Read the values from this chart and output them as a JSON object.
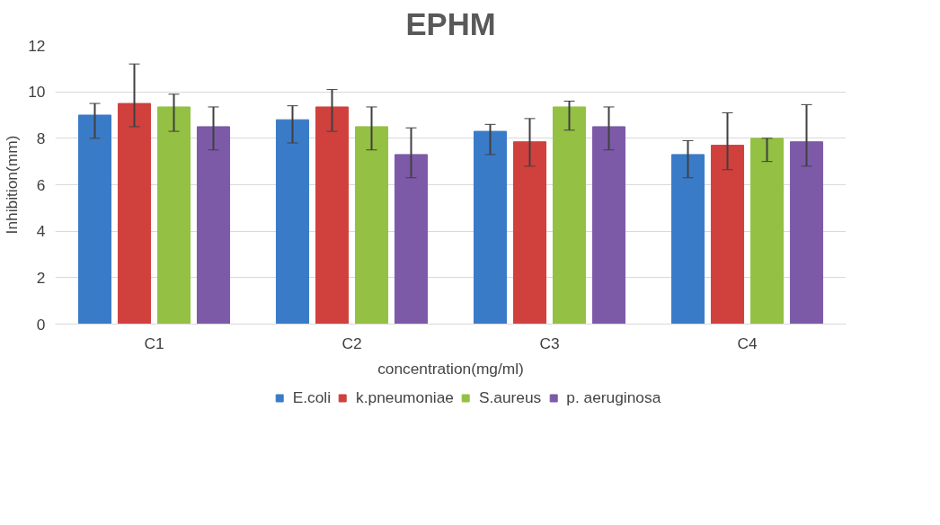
{
  "chart_data": {
    "type": "bar",
    "title": "EPHM",
    "xlabel": "concentration(mg/ml)",
    "ylabel": "Inhibition(mm)",
    "categories": [
      "C1",
      "C2",
      "C3",
      "C4"
    ],
    "series": [
      {
        "name": "E.coli",
        "color": "#3a7bc8",
        "values": [
          9.0,
          8.8,
          8.3,
          7.3
        ],
        "errors": [
          [
            8.0,
            9.5
          ],
          [
            7.8,
            9.4
          ],
          [
            7.3,
            8.6
          ],
          [
            6.3,
            7.9
          ]
        ]
      },
      {
        "name": "k.pneumoniae",
        "color": "#d0403d",
        "values": [
          9.5,
          9.35,
          7.85,
          7.7
        ],
        "errors": [
          [
            8.5,
            11.2
          ],
          [
            8.3,
            10.1
          ],
          [
            6.8,
            8.85
          ],
          [
            6.65,
            9.1
          ]
        ]
      },
      {
        "name": "S.aureus",
        "color": "#94c043",
        "values": [
          9.35,
          8.5,
          9.35,
          8.0
        ],
        "errors": [
          [
            8.3,
            9.9
          ],
          [
            7.5,
            9.35
          ],
          [
            8.35,
            9.6
          ],
          [
            7.0,
            8.0
          ]
        ]
      },
      {
        "name": "p. aeruginosa",
        "color": "#7d5aa8",
        "values": [
          8.5,
          7.3,
          8.5,
          7.85
        ],
        "errors": [
          [
            7.5,
            9.35
          ],
          [
            6.3,
            8.45
          ],
          [
            7.5,
            9.35
          ],
          [
            6.8,
            9.45
          ]
        ]
      }
    ],
    "ylim": [
      0,
      12
    ],
    "yticks": [
      0,
      2,
      4,
      6,
      8,
      10,
      12
    ],
    "grid": "y",
    "legend": "bottom"
  }
}
